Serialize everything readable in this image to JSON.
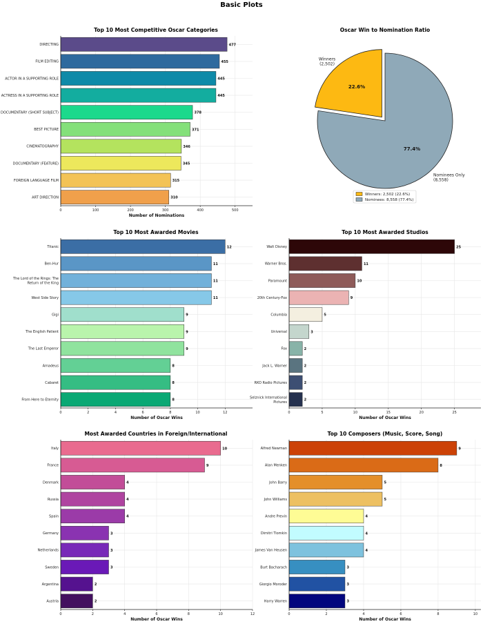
{
  "figure_title": "Basic Plots",
  "chart_data": [
    {
      "type": "bar",
      "orientation": "horizontal",
      "title": "Top 10 Most Competitive Oscar Categories",
      "xlabel": "Number of Nominations",
      "ylabel": "",
      "categories": [
        "DIRECTING",
        "FILM EDITING",
        "ACTOR IN A SUPPORTING ROLE",
        "ACTRESS IN A SUPPORTING ROLE",
        "DOCUMENTARY (SHORT SUBJECT)",
        "BEST PICTURE",
        "CINEMATOGRAPHY",
        "DOCUMENTARY (FEATURE)",
        "FOREIGN LANGUAGE FILM",
        "ART DIRECTION"
      ],
      "values": [
        477,
        455,
        445,
        445,
        378,
        371,
        346,
        345,
        315,
        310
      ],
      "value_labels": [
        "477",
        "455",
        "445",
        "445",
        "378",
        "371",
        "346",
        "345",
        "315",
        "310"
      ],
      "colors": [
        "#5b4b8a",
        "#2e6a9e",
        "#0e8aa8",
        "#13ad9f",
        "#1cd98c",
        "#84e07a",
        "#b4e35e",
        "#ede85c",
        "#f3c356",
        "#f0a04b"
      ],
      "xlim": [
        0,
        550
      ],
      "xticks": [
        0,
        100,
        200,
        300,
        400,
        500
      ],
      "xtick_labels": [
        "0",
        "100",
        "200",
        "300",
        "400",
        "500"
      ],
      "grid": true
    },
    {
      "type": "pie",
      "title": "Oscar Win to Nomination Ratio",
      "labels": [
        "Winners\n(2,502)",
        "Nominees Only\n(8,558)"
      ],
      "values": [
        2502,
        8558
      ],
      "percent_labels": [
        "22.6%",
        "77.4%"
      ],
      "colors": [
        "#fdb912",
        "#8fa9b8"
      ],
      "exploded": [
        true,
        false
      ],
      "legend": [
        "Winners: 2,502 (22.6%)",
        "Nominees: 8,558 (77.4%)"
      ],
      "legend_position": "bottom"
    },
    {
      "type": "bar",
      "orientation": "horizontal",
      "title": "Top 10 Most Awarded Movies",
      "xlabel": "Number of Oscar Wins",
      "ylabel": "",
      "categories": [
        "Titanic",
        "Ben-Hur",
        "The Lord of the Rings: The\nReturn of the King",
        "West Side Story",
        "Gigi",
        "The English Patient",
        "The Last Emperor",
        "Amadeus",
        "Cabaret",
        "From Here to Eternity"
      ],
      "values": [
        12,
        11,
        11,
        11,
        9,
        9,
        9,
        8,
        8,
        8
      ],
      "value_labels": [
        "12",
        "11",
        "11",
        "11",
        "9",
        "9",
        "9",
        "8",
        "8",
        "8"
      ],
      "colors": [
        "#3b6ea5",
        "#5a96c6",
        "#72b1da",
        "#86c8e8",
        "#a0dfcc",
        "#b9f4ac",
        "#90e39e",
        "#63d095",
        "#35bd83",
        "#0aa874"
      ],
      "xlim": [
        0,
        14
      ],
      "xticks": [
        0,
        2,
        4,
        6,
        8,
        10,
        12
      ],
      "xtick_labels": [
        "0",
        "2",
        "4",
        "6",
        "8",
        "10",
        "12"
      ],
      "grid": true
    },
    {
      "type": "bar",
      "orientation": "horizontal",
      "title": "Top 10 Most Awarded Studios",
      "xlabel": "Number of Oscar Wins",
      "ylabel": "",
      "categories": [
        "Walt Disney",
        "Warner Bros.",
        "Paramount",
        "20th Century-Fox",
        "Columbia",
        "Universal",
        "Fox",
        "Jack L. Warner",
        "RKO Radio Pictures",
        "Selznick International\nPictures"
      ],
      "values": [
        25,
        11,
        10,
        9,
        5,
        3,
        2,
        2,
        2,
        2
      ],
      "value_labels": [
        "25",
        "11",
        "10",
        "9",
        "5",
        "3",
        "2",
        "2",
        "2",
        "2"
      ],
      "colors": [
        "#2d0708",
        "#5e3030",
        "#8e5b59",
        "#ebb3b3",
        "#f4efe0",
        "#c4d6cd",
        "#88b3a8",
        "#5a7480",
        "#3d4f73",
        "#25314f"
      ],
      "xlim": [
        0,
        29
      ],
      "xticks": [
        0,
        5,
        10,
        15,
        20,
        25
      ],
      "xtick_labels": [
        "0",
        "5",
        "10",
        "15",
        "20",
        "25"
      ],
      "grid": true
    },
    {
      "type": "bar",
      "orientation": "horizontal",
      "title": "Most Awarded Countries in Foreign/International",
      "xlabel": "Number of Oscar Wins",
      "ylabel": "",
      "categories": [
        "Italy",
        "France",
        "Denmark",
        "Russia",
        "Spain",
        "Germany",
        "Netherlands",
        "Sweden",
        "Argentina",
        "Austria"
      ],
      "values": [
        10,
        9,
        4,
        4,
        4,
        3,
        3,
        3,
        2,
        2
      ],
      "value_labels": [
        "10",
        "9",
        "4",
        "4",
        "4",
        "3",
        "3",
        "3",
        "2",
        "2"
      ],
      "colors": [
        "#e96b8f",
        "#d75b93",
        "#c24d98",
        "#af44a0",
        "#9b3ba8",
        "#8a33b1",
        "#7829b8",
        "#6a19b7",
        "#55128f",
        "#43105f"
      ],
      "xlim": [
        0,
        12
      ],
      "xticks": [
        0,
        2,
        4,
        6,
        8,
        10,
        12
      ],
      "xtick_labels": [
        "0",
        "2",
        "4",
        "6",
        "8",
        "10",
        "12"
      ],
      "grid": true
    },
    {
      "type": "bar",
      "orientation": "horizontal",
      "title": "Top 10 Composers (Music, Score, Song)",
      "xlabel": "Number of Oscar Wins",
      "ylabel": "",
      "categories": [
        "Alfred Newman",
        "Alan Menken",
        "John Barry",
        "John Williams",
        "Andre Previn",
        "Dimitri Tiomkin",
        "James Van Heusen",
        "Burt Bacharach",
        "Giorgio Moroder",
        "Harry Warren"
      ],
      "values": [
        9,
        8,
        5,
        5,
        4,
        4,
        4,
        3,
        3,
        3
      ],
      "value_labels": [
        "9",
        "8",
        "5",
        "5",
        "4",
        "4",
        "4",
        "3",
        "3",
        "3"
      ],
      "colors": [
        "#cc4207",
        "#da6b17",
        "#e48f2a",
        "#edc062",
        "#fefc95",
        "#c2fcff",
        "#7ec2de",
        "#378fc1",
        "#2152a3",
        "#02067e"
      ],
      "xlim": [
        0,
        10.3
      ],
      "xticks": [
        0,
        2,
        4,
        6,
        8,
        10
      ],
      "xtick_labels": [
        "0",
        "2",
        "4",
        "6",
        "8",
        "10"
      ],
      "grid": true
    }
  ]
}
